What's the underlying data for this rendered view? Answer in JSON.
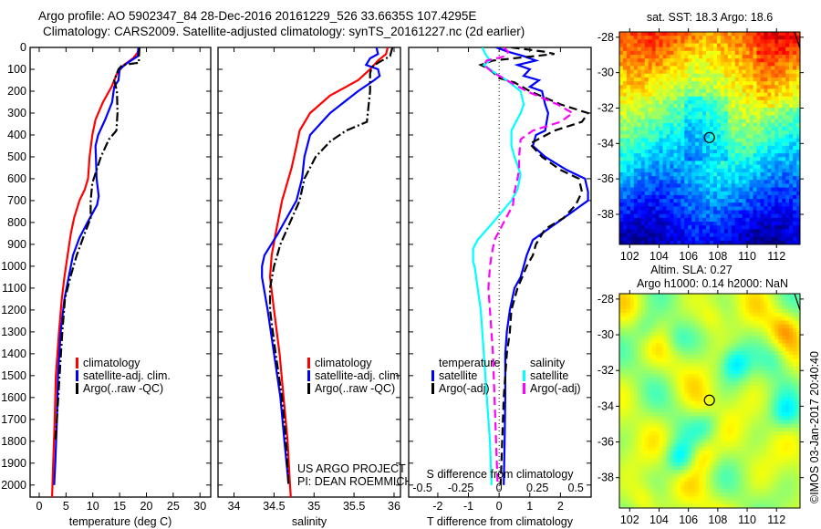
{
  "header": {
    "line1": "Argo profile: AO 5902347_84 28-Dec-2016 20161229_526 33.6635S 107.4295E",
    "line2": "Climatology: CARS2009. Satellite-adjusted climatology: synTS_20161227.nc (2d earlier)"
  },
  "colors": {
    "climatology": "#ff0000",
    "satellite": "#0000ff",
    "argo": "#000000",
    "sal_satellite": "#00ffff",
    "sal_argo": "#ff00ff"
  },
  "chart_data": [
    {
      "id": "temperature",
      "type": "line",
      "xlabel": "temperature (deg C)",
      "ylabel": "",
      "xlim": [
        -1.7,
        32
      ],
      "ylim": [
        2055,
        0
      ],
      "xticks": [
        0,
        5,
        10,
        15,
        20,
        25,
        30
      ],
      "yticks": [
        0,
        100,
        200,
        300,
        400,
        500,
        600,
        700,
        800,
        900,
        1000,
        1100,
        1200,
        1300,
        1400,
        1500,
        1600,
        1700,
        1800,
        1900,
        2000
      ],
      "legend": [
        "climatology",
        "satellite-adj. clim.",
        "Argo(..raw -QC)"
      ],
      "legend_placement": "center",
      "series": [
        {
          "name": "climatology",
          "style": "solid",
          "color": "#ff0000",
          "depth": [
            0,
            25,
            50,
            80,
            120,
            180,
            250,
            330,
            400,
            500,
            600,
            650,
            700,
            780,
            850,
            950,
            1050,
            1150,
            1300,
            1500,
            1700,
            1900,
            2055
          ],
          "values": [
            18.7,
            18.3,
            17.5,
            15.8,
            14.5,
            13.5,
            11.9,
            10.5,
            9.9,
            9.4,
            9.1,
            8.5,
            7.5,
            6.5,
            5.9,
            5.3,
            4.7,
            4.2,
            3.7,
            3.1,
            2.9,
            2.6,
            2.4
          ]
        },
        {
          "name": "satellite-adj. clim.",
          "style": "solid",
          "color": "#0000ff",
          "depth": [
            0,
            40,
            70,
            100,
            150,
            180,
            250,
            330,
            400,
            450,
            520,
            600,
            680,
            720,
            800,
            870,
            950,
            1050,
            1150,
            1300,
            1500,
            1700,
            1900,
            2000
          ],
          "values": [
            18.5,
            18.4,
            16.5,
            15.0,
            14.8,
            14.0,
            13.6,
            12.3,
            11.0,
            10.5,
            10.6,
            10.7,
            11.1,
            10.8,
            9.0,
            7.5,
            6.3,
            5.5,
            4.7,
            4.0,
            3.5,
            3.3,
            3.0,
            2.8
          ]
        },
        {
          "name": "Argo(..raw -QC)",
          "style": "dashdot",
          "color": "#000000",
          "depth": [
            0,
            40,
            70,
            80,
            100,
            150,
            200,
            300,
            380,
            420,
            500,
            560,
            620,
            700,
            780,
            850,
            950,
            1050,
            1150,
            1300,
            1500,
            1700,
            1800
          ],
          "values": [
            18.7,
            18.6,
            18.6,
            15.5,
            14.8,
            14.0,
            14.5,
            14.6,
            14.4,
            13.0,
            11.5,
            10.7,
            9.9,
            9.6,
            9.6,
            8.5,
            7.0,
            5.8,
            4.8,
            4.3,
            3.8,
            3.3,
            3.0
          ]
        }
      ]
    },
    {
      "id": "salinity",
      "type": "line",
      "xlabel": "salinity",
      "xlim": [
        33.8,
        36.08
      ],
      "ylim": [
        2055,
        0
      ],
      "xticks": [
        34,
        34.5,
        35,
        35.5,
        36
      ],
      "xtick_labels": [
        "34",
        "34.5",
        "35",
        "35.5",
        "36"
      ],
      "legend": [
        "climatology",
        "satellite-adj. clim.",
        "Argo(..raw -QC)"
      ],
      "legend_placement": "center-right",
      "annotations": [
        "US ARGO PROJECT",
        "PI: DEAN ROEMMICH"
      ],
      "series": [
        {
          "name": "climatology",
          "style": "solid",
          "color": "#ff0000",
          "depth": [
            0,
            30,
            60,
            100,
            150,
            220,
            300,
            380,
            450,
            550,
            700,
            850,
            950,
            1050,
            1200,
            1400,
            1600,
            1800,
            2000,
            2055
          ],
          "values": [
            35.92,
            35.9,
            35.8,
            35.7,
            35.55,
            35.2,
            34.95,
            34.82,
            34.78,
            34.72,
            34.6,
            34.52,
            34.47,
            34.45,
            34.5,
            34.57,
            34.62,
            34.67,
            34.7,
            34.71
          ]
        },
        {
          "name": "satellite-adj. clim.",
          "style": "solid",
          "color": "#0000ff",
          "depth": [
            0,
            30,
            50,
            80,
            100,
            130,
            150,
            200,
            300,
            400,
            500,
            600,
            700,
            850,
            950,
            1000,
            1050,
            1200,
            1400,
            1600,
            1800,
            1990
          ],
          "values": [
            35.78,
            35.8,
            35.7,
            35.65,
            35.8,
            35.82,
            35.75,
            35.55,
            35.2,
            34.95,
            34.88,
            34.85,
            34.78,
            34.55,
            34.38,
            34.35,
            34.35,
            34.42,
            34.5,
            34.58,
            34.63,
            34.68
          ]
        },
        {
          "name": "Argo(..raw -QC)",
          "style": "dashdot",
          "color": "#000000",
          "depth": [
            0,
            40,
            70,
            90,
            120,
            200,
            340,
            380,
            430,
            500,
            600,
            700,
            800,
            900,
            1000,
            1100,
            1200,
            1400,
            1600,
            1800,
            2000
          ],
          "values": [
            35.98,
            35.95,
            35.8,
            35.72,
            35.7,
            35.7,
            35.66,
            35.4,
            35.2,
            35.02,
            34.88,
            34.82,
            34.7,
            34.58,
            34.5,
            34.45,
            34.45,
            34.52,
            34.6,
            34.65,
            34.68
          ]
        }
      ]
    },
    {
      "id": "difference",
      "type": "line",
      "xlabel": "T difference from climatology",
      "xlabel_secondary": "S difference from climatology",
      "xlim": [
        -2.95,
        3.0
      ],
      "ylim": [
        2055,
        0
      ],
      "xticks": [
        -2,
        -1,
        0,
        1,
        2
      ],
      "secondary_xlim": [
        -0.59,
        0.6
      ],
      "secondary_xticks": [
        -0.5,
        -0.25,
        0,
        0.25,
        0.5
      ],
      "secondary_xtick_labels": [
        "-0.5",
        "-0.25",
        "0",
        "0.25",
        "0.5"
      ],
      "zero_line": "dotted",
      "legend_groups": [
        {
          "title": "temperature",
          "items": [
            "satellite",
            "Argo(-adj)"
          ]
        },
        {
          "title": "salinity",
          "items": [
            "satellite",
            "Argo(-adj)"
          ]
        }
      ],
      "series": [
        {
          "name": "temperature satellite",
          "axis": "T",
          "style": "solid",
          "color": "#0000ff",
          "depth": [
            0,
            20,
            40,
            60,
            80,
            100,
            130,
            150,
            180,
            200,
            260,
            300,
            380,
            400,
            450,
            500,
            560,
            600,
            660,
            700,
            760,
            830,
            880,
            950,
            1000,
            1050,
            1100,
            1200,
            1300,
            1400,
            1500,
            1600,
            1800,
            2000
          ],
          "values": [
            -0.1,
            0.3,
            0.8,
            1.2,
            0.6,
            1.0,
            0.8,
            1.3,
            1.0,
            1.4,
            1.5,
            1.6,
            1.5,
            1.2,
            1.1,
            1.5,
            2.2,
            2.8,
            2.9,
            2.9,
            2.3,
            1.6,
            1.1,
            0.9,
            0.8,
            0.7,
            0.5,
            0.35,
            0.25,
            0.2,
            0.2,
            0.2,
            0.18,
            0.15
          ]
        },
        {
          "name": "temperature Argo(-adj)",
          "axis": "T",
          "style": "dashed",
          "color": "#000000",
          "depth": [
            0,
            20,
            30,
            60,
            80,
            100,
            140,
            160,
            200,
            260,
            300,
            340,
            380,
            440,
            500,
            560,
            600,
            660,
            720,
            780,
            830,
            900,
            950,
            1000,
            1050,
            1100,
            1200,
            1300,
            1400,
            1500,
            1600,
            1800,
            2000
          ],
          "values": [
            0.4,
            1.5,
            1.8,
            -0.2,
            -0.6,
            -0.3,
            0.0,
            0.5,
            1.0,
            2.0,
            2.9,
            2.7,
            1.8,
            1.0,
            1.4,
            2.0,
            2.6,
            2.7,
            2.5,
            2.1,
            1.5,
            1.2,
            1.1,
            0.9,
            0.75,
            0.6,
            0.4,
            0.35,
            0.25,
            0.2,
            0.15,
            0.1,
            0.05
          ]
        },
        {
          "name": "salinity satellite",
          "axis": "S",
          "style": "solid",
          "color": "#00ffff",
          "depth": [
            0,
            30,
            60,
            80,
            120,
            150,
            200,
            260,
            300,
            380,
            450,
            500,
            580,
            650,
            700,
            800,
            880,
            920,
            980,
            1000,
            1100,
            1200,
            1400,
            1600,
            1800,
            2000
          ],
          "values": [
            -0.11,
            -0.09,
            -0.06,
            -0.1,
            -0.02,
            0.05,
            0.14,
            0.16,
            0.14,
            0.08,
            0.08,
            0.1,
            0.14,
            0.12,
            0.08,
            -0.04,
            -0.14,
            -0.17,
            -0.17,
            -0.16,
            -0.14,
            -0.12,
            -0.1,
            -0.08,
            -0.06,
            -0.05
          ]
        },
        {
          "name": "salinity Argo(-adj)",
          "axis": "S",
          "style": "dashed",
          "color": "#ff00ff",
          "depth": [
            0,
            20,
            40,
            60,
            80,
            110,
            150,
            200,
            260,
            300,
            340,
            380,
            420,
            500,
            560,
            600,
            660,
            720,
            800,
            880,
            950,
            1000,
            1100,
            1200,
            1400,
            1600,
            1800,
            2000
          ],
          "values": [
            0.03,
            0.06,
            0.04,
            -0.08,
            -0.1,
            -0.05,
            0.05,
            0.18,
            0.38,
            0.48,
            0.4,
            0.22,
            0.14,
            0.13,
            0.13,
            0.12,
            0.1,
            0.09,
            0.03,
            -0.03,
            -0.05,
            -0.06,
            -0.07,
            -0.06,
            -0.04,
            -0.03,
            -0.02,
            -0.01
          ]
        }
      ]
    },
    {
      "id": "sst-map",
      "type": "heatmap",
      "title": "sat. SST: 18.3 Argo: 18.6",
      "xlim": [
        101.3,
        113.6
      ],
      "ylim": [
        -39.7,
        -27.7
      ],
      "xticks": [
        102,
        104,
        106,
        108,
        110,
        112
      ],
      "yticks": [
        -28,
        -30,
        -32,
        -34,
        -36,
        -38
      ],
      "marker": {
        "lon": 107.4295,
        "lat": -33.6635
      },
      "colormap": "jet",
      "description": "warm (orange/yellow) in north, green mid, blue/dark blue in south"
    },
    {
      "id": "sla-map",
      "type": "heatmap",
      "title_line1": "Altim. SLA: 0.27",
      "title_line2": "Argo h1000: 0.14 h2000: NaN",
      "xlim": [
        101.3,
        113.6
      ],
      "ylim": [
        -39.7,
        -27.7
      ],
      "xticks": [
        102,
        104,
        106,
        108,
        110,
        112
      ],
      "yticks": [
        -28,
        -30,
        -32,
        -34,
        -36,
        -38
      ],
      "marker": {
        "lon": 107.4295,
        "lat": -33.6635
      },
      "colormap": "jet",
      "description": "mesoscale eddies: green background with yellow/orange highs and cyan lows"
    }
  ],
  "footer": {
    "stamp": "©IMOS 03-Jan-2017 20:40:40"
  }
}
